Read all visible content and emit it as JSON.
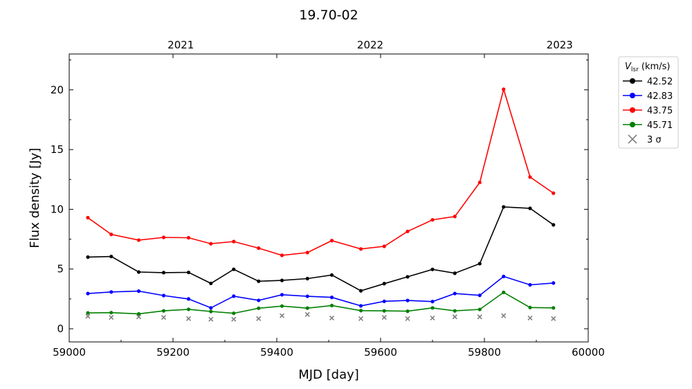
{
  "chart_data": {
    "type": "line",
    "title": "19.70-02",
    "xlabel": "MJD [day]",
    "ylabel": "Flux density [Jy]",
    "xlim": [
      59000,
      60000
    ],
    "ylim": [
      -1.1,
      23
    ],
    "x_ticks": [
      59000,
      59200,
      59400,
      59600,
      59800,
      60000
    ],
    "y_ticks": [
      0,
      5,
      10,
      15,
      20
    ],
    "top_axis": {
      "labels": [
        "2021",
        "2022",
        "2023"
      ],
      "positions": [
        59215,
        59580,
        59945
      ]
    },
    "legend": {
      "title": "V_lsr (km/s)",
      "title_main": "V",
      "title_sub": "lsr",
      "title_rest": " (km/s)",
      "placement": "outside-right-top",
      "sigma_label": "3 σ"
    },
    "x": [
      59036,
      59081,
      59134,
      59182,
      59230,
      59273,
      59317,
      59365,
      59410,
      59459,
      59506,
      59562,
      59607,
      59652,
      59700,
      59743,
      59791,
      59837,
      59888,
      59933
    ],
    "series": [
      {
        "name": "42.52",
        "color": "#000000",
        "values": [
          6.0,
          6.05,
          4.75,
          4.7,
          4.72,
          3.8,
          4.98,
          3.98,
          4.05,
          4.2,
          4.5,
          3.18,
          3.78,
          4.35,
          4.97,
          4.65,
          5.45,
          10.2,
          10.08,
          8.7
        ]
      },
      {
        "name": "42.83",
        "color": "#0000ff",
        "values": [
          2.95,
          3.08,
          3.15,
          2.78,
          2.5,
          1.75,
          2.73,
          2.38,
          2.85,
          2.72,
          2.63,
          1.92,
          2.3,
          2.37,
          2.28,
          2.95,
          2.8,
          4.38,
          3.68,
          3.83
        ]
      },
      {
        "name": "43.75",
        "color": "#ff0000",
        "values": [
          9.3,
          7.9,
          7.42,
          7.65,
          7.62,
          7.12,
          7.3,
          6.75,
          6.15,
          6.38,
          7.38,
          6.68,
          6.9,
          8.15,
          9.12,
          9.4,
          12.25,
          20.05,
          12.7,
          11.35
        ]
      },
      {
        "name": "45.71",
        "color": "#008000",
        "values": [
          1.33,
          1.35,
          1.25,
          1.5,
          1.63,
          1.45,
          1.3,
          1.72,
          1.9,
          1.73,
          1.95,
          1.52,
          1.5,
          1.47,
          1.75,
          1.5,
          1.62,
          3.05,
          1.78,
          1.75
        ]
      }
    ],
    "sigma3": {
      "name": "3 σ",
      "color": "#808080",
      "values": [
        1.05,
        0.95,
        1.0,
        0.95,
        0.85,
        0.8,
        0.8,
        0.85,
        1.1,
        1.2,
        0.9,
        0.85,
        0.95,
        0.85,
        0.9,
        1.0,
        1.0,
        1.1,
        0.9,
        0.85
      ]
    }
  }
}
